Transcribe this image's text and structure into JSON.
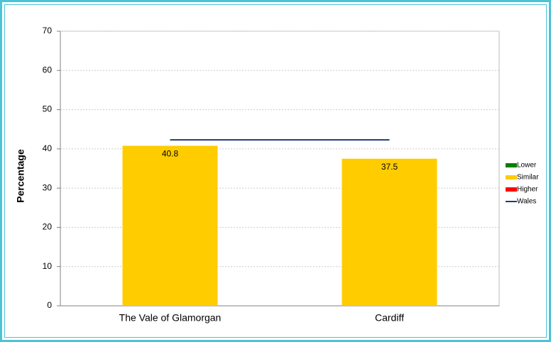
{
  "chart_data": {
    "type": "bar",
    "y_label": "Percentage",
    "categories": [
      "The Vale of Glamorgan",
      "Cardiff"
    ],
    "series": [
      {
        "name": "Lower",
        "color": "#008000",
        "values": [
          null,
          null
        ]
      },
      {
        "name": "Similar",
        "color": "#ffcc00",
        "values": [
          40.8,
          37.5
        ]
      },
      {
        "name": "Higher",
        "color": "#ff0000",
        "values": [
          null,
          null
        ]
      },
      {
        "name": "Wales",
        "color": "#1f3a7a",
        "type": "line",
        "values": [
          42.3,
          42.3
        ]
      }
    ],
    "ylim": [
      0,
      70
    ],
    "yticks": [
      0,
      10,
      20,
      30,
      40,
      50,
      60,
      70
    ],
    "grid": true,
    "legend": "right"
  }
}
